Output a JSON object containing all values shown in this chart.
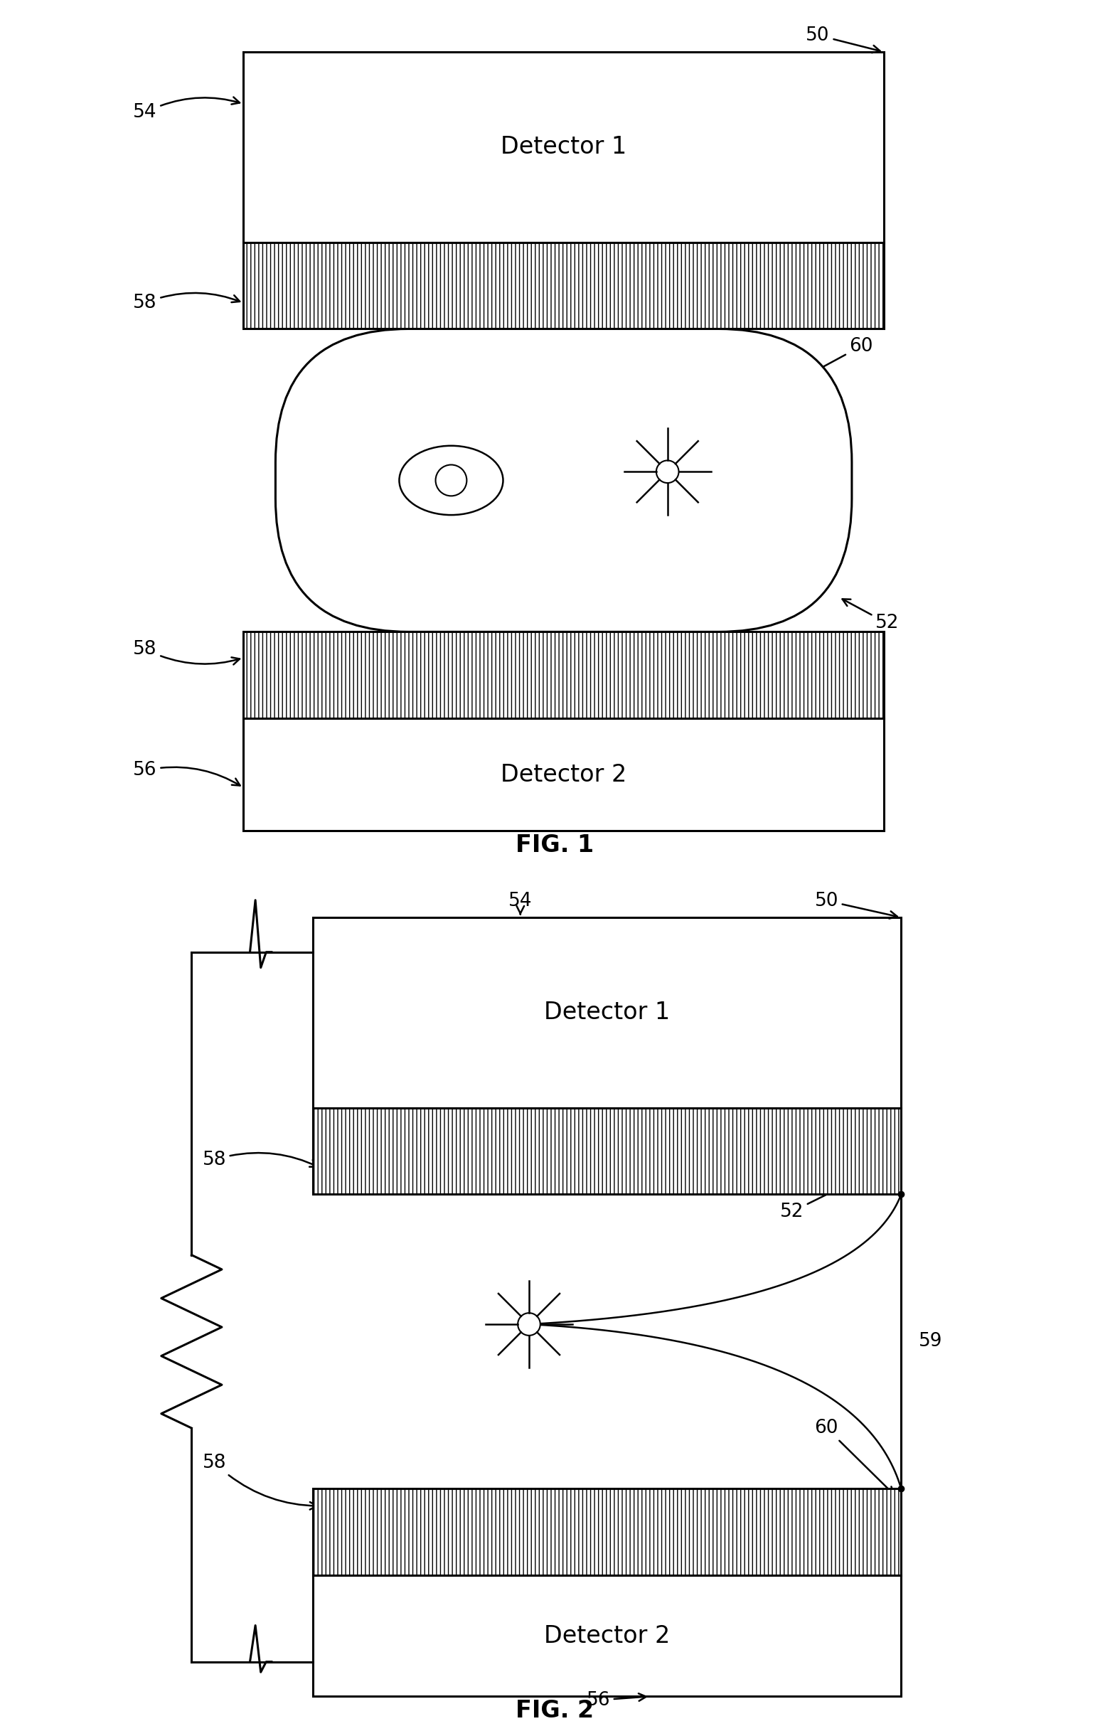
{
  "fig1": {
    "title": "FIG. 1",
    "detector1_label": "Detector 1",
    "detector2_label": "Detector 2",
    "label_50": "50",
    "label_52": "52",
    "label_54": "54",
    "label_56": "56",
    "label_58_top": "58",
    "label_58_bot": "58",
    "label_60": "60"
  },
  "fig2": {
    "title": "FIG. 2",
    "detector1_label": "Detector 1",
    "detector2_label": "Detector 2",
    "label_50": "50",
    "label_52": "52",
    "label_54": "54",
    "label_56": "56",
    "label_58_top": "58",
    "label_58_bot": "58",
    "label_59": "59",
    "label_60": "60"
  },
  "bg_color": "#ffffff",
  "font_size_label": 19,
  "font_size_fig": 24,
  "font_size_detector": 24
}
